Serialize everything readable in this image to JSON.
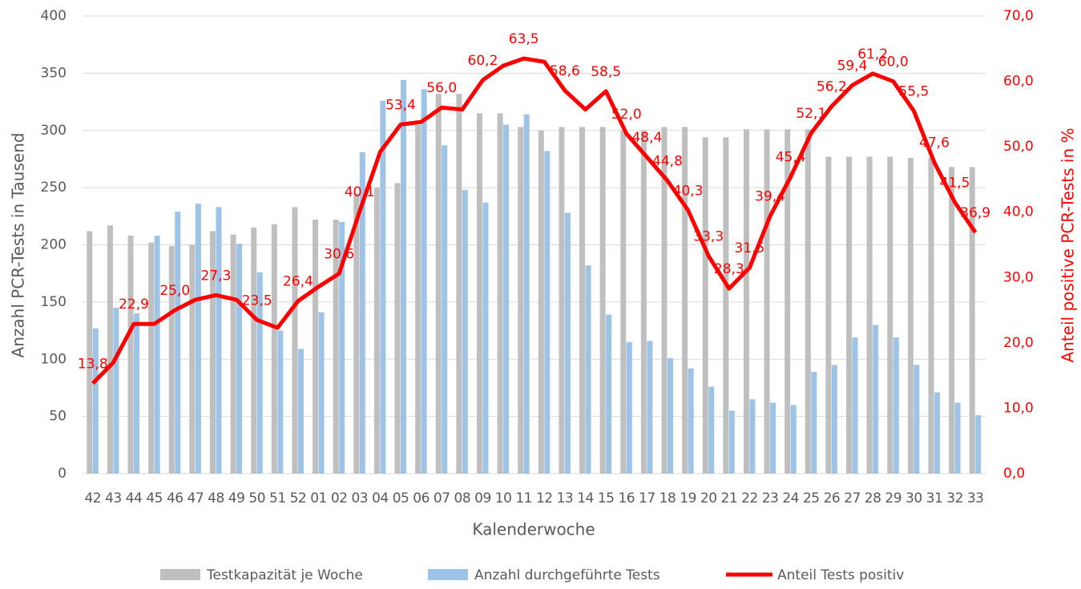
{
  "chart_data": {
    "type": "bar-line",
    "x_label": "Kalenderwoche",
    "y_label": "Anzahl PCR-Tests in Tausend",
    "y2_label": "Anteil positive PCR-Tests in %",
    "categories": [
      "42",
      "43",
      "44",
      "45",
      "46",
      "47",
      "48",
      "49",
      "50",
      "51",
      "52",
      "01",
      "02",
      "03",
      "04",
      "05",
      "06",
      "07",
      "08",
      "09",
      "10",
      "11",
      "12",
      "13",
      "14",
      "15",
      "16",
      "17",
      "18",
      "19",
      "20",
      "21",
      "22",
      "23",
      "24",
      "25",
      "26",
      "27",
      "28",
      "29",
      "30",
      "31",
      "32",
      "33"
    ],
    "ylim": [
      0,
      400
    ],
    "yticks": [
      0,
      50,
      100,
      150,
      200,
      250,
      300,
      350,
      400
    ],
    "y2lim": [
      0,
      70
    ],
    "y2ticks": [
      {
        "value": 0,
        "label": "0,0"
      },
      {
        "value": 10,
        "label": "10,0"
      },
      {
        "value": 20,
        "label": "20,0"
      },
      {
        "value": 30,
        "label": "30,0"
      },
      {
        "value": 40,
        "label": "40,0"
      },
      {
        "value": 50,
        "label": "50,0"
      },
      {
        "value": 60,
        "label": "60,0"
      },
      {
        "value": 70,
        "label": "70,0"
      }
    ],
    "grid": true,
    "series": [
      {
        "name": "Testkapazität je Woche",
        "type": "bar",
        "color": "#bfbfbf",
        "values": [
          212,
          217,
          208,
          202,
          199,
          200,
          212,
          209,
          215,
          218,
          233,
          222,
          222,
          245,
          250,
          254,
          305,
          332,
          332,
          315,
          315,
          303,
          300,
          303,
          303,
          303,
          300,
          300,
          303,
          303,
          294,
          294,
          301,
          301,
          301,
          301,
          277,
          277,
          277,
          277,
          276,
          276,
          268,
          268
        ]
      },
      {
        "name": "Anzahl durchgeführte Tests",
        "type": "bar",
        "color": "#9dc3e6",
        "values": [
          127,
          145,
          140,
          208,
          229,
          236,
          233,
          201,
          176,
          125,
          109,
          141,
          220,
          281,
          326,
          344,
          336,
          287,
          248,
          237,
          305,
          314,
          282,
          228,
          182,
          139,
          115,
          116,
          101,
          92,
          76,
          55,
          65,
          62,
          60,
          89,
          95,
          119,
          130,
          119,
          95,
          71,
          62,
          51
        ]
      },
      {
        "name": "Anteil Tests positiv",
        "type": "line",
        "axis": "y2",
        "color": "#ff0000",
        "values": [
          13.8,
          17.0,
          22.9,
          22.9,
          25.0,
          26.6,
          27.3,
          26.6,
          23.5,
          22.3,
          26.4,
          28.6,
          30.6,
          40.1,
          49.2,
          53.4,
          53.8,
          56.0,
          55.7,
          60.2,
          62.4,
          63.5,
          63.0,
          58.6,
          55.7,
          58.5,
          52.0,
          48.4,
          44.8,
          40.3,
          33.3,
          28.3,
          31.5,
          39.4,
          45.4,
          52.1,
          56.2,
          59.4,
          61.2,
          60.0,
          55.5,
          47.6,
          41.5,
          36.9
        ],
        "value_labels": [
          "13,8",
          null,
          "22,9",
          null,
          "25,0",
          null,
          "27,3",
          null,
          "23,5",
          null,
          "26,4",
          null,
          "30,6",
          "40,1",
          null,
          "53,4",
          null,
          "56,0",
          null,
          "60,2",
          null,
          "63,5",
          null,
          "58,6",
          null,
          "58,5",
          "52,0",
          "48,4",
          "44,8",
          "40,3",
          "33,3",
          "28,3",
          "31,5",
          "39,4",
          "45,4",
          "52,1",
          "56,2",
          "59,4",
          "61,2",
          "60,0",
          "55,5",
          "47,6",
          "41,5",
          "36,9"
        ]
      }
    ]
  }
}
